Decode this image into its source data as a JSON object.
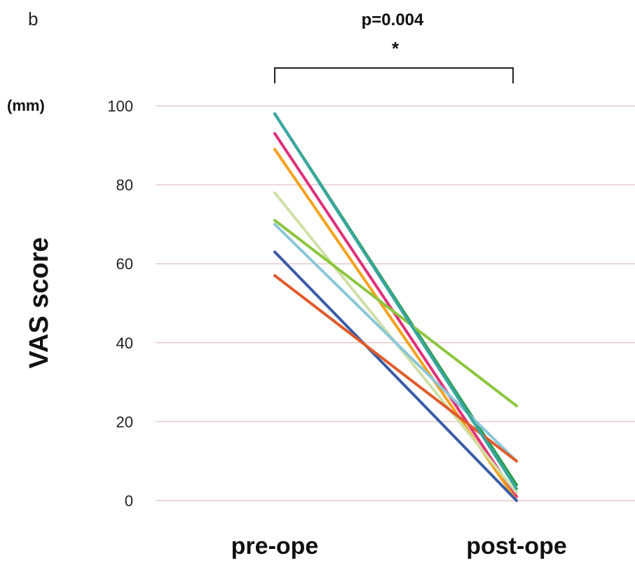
{
  "chart_data": {
    "type": "line",
    "panel_label": "b",
    "categories": [
      "pre-ope",
      "post-ope"
    ],
    "ylabel": "VAS score",
    "yunit": "(mm)",
    "ylim": [
      0,
      100
    ],
    "yticks": [
      0,
      20,
      40,
      60,
      80,
      100
    ],
    "grid": true,
    "significance": {
      "text": "p=0.004",
      "marker": "*",
      "between": [
        "pre-ope",
        "post-ope"
      ]
    },
    "series": [
      {
        "color": "#2e9e4f",
        "values": [
          98,
          4
        ]
      },
      {
        "color": "#e0307a",
        "values": [
          93,
          1
        ]
      },
      {
        "color": "#f5a21d",
        "values": [
          89,
          0
        ]
      },
      {
        "color": "#cfe0a8",
        "values": [
          78,
          2
        ]
      },
      {
        "color": "#8cc63e",
        "values": [
          71,
          24
        ]
      },
      {
        "color": "#8cc6d8",
        "values": [
          70,
          10
        ]
      },
      {
        "color": "#3a5ca8",
        "values": [
          63,
          0
        ]
      },
      {
        "color": "#e05a2a",
        "values": [
          57,
          10
        ]
      },
      {
        "color": "#3aa6a0",
        "values": [
          98,
          3
        ]
      }
    ]
  }
}
